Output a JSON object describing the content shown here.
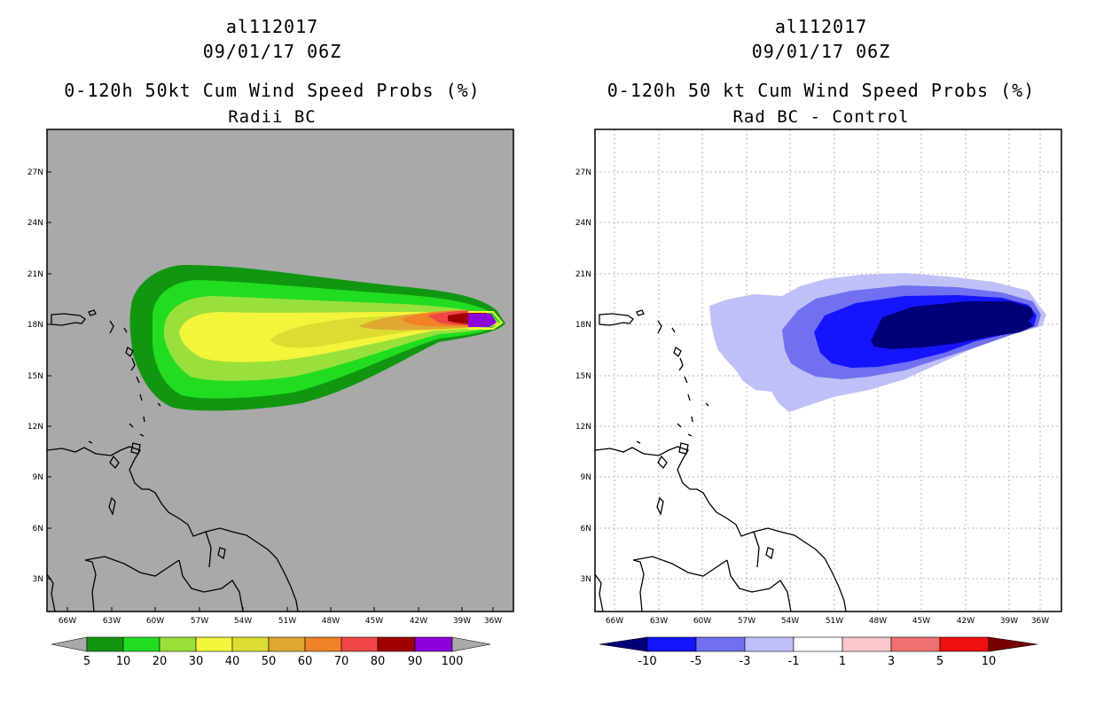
{
  "left_panel": {
    "storm_id": "al112017",
    "datetime": "09/01/17 06Z",
    "title": "0-120h 50kt Cum Wind Speed Probs (%)",
    "subtitle": "Radii BC",
    "lat_labels": [
      "27N",
      "24N",
      "21N",
      "18N",
      "15N",
      "12N",
      "9N",
      "6N",
      "3N"
    ],
    "lon_labels": [
      "66W",
      "63W",
      "60W",
      "57W",
      "54W",
      "51W",
      "48W",
      "45W",
      "42W",
      "39W",
      "36W"
    ],
    "colorbar_labels": [
      "5",
      "10",
      "20",
      "30",
      "40",
      "50",
      "60",
      "70",
      "80",
      "90",
      "100"
    ],
    "colors": {
      "background": "#a9a9a9",
      "bins": [
        "#129612",
        "#22dc22",
        "#9ae03c",
        "#f4f43c",
        "#dcdc32",
        "#e0a832",
        "#f08228",
        "#f04646",
        "#a00000",
        "#8c00dc"
      ]
    }
  },
  "right_panel": {
    "storm_id": "al112017",
    "datetime": "09/01/17 06Z",
    "title": "0-120h 50 kt Cum Wind Speed Probs (%)",
    "subtitle": "Rad BC - Control",
    "lat_labels": [
      "27N",
      "24N",
      "21N",
      "18N",
      "15N",
      "12N",
      "9N",
      "6N",
      "3N"
    ],
    "lon_labels": [
      "66W",
      "63W",
      "60W",
      "57W",
      "54W",
      "51W",
      "48W",
      "45W",
      "42W",
      "39W",
      "36W"
    ],
    "colorbar_labels": [
      "-10",
      "-5",
      "-3",
      "-1",
      "1",
      "3",
      "5",
      "10"
    ],
    "colors": {
      "background": "#ffffff",
      "bins": [
        "#000078",
        "#1414ff",
        "#7070f0",
        "#c0c0f8",
        "#ffffff",
        "#fac8c8",
        "#f07070",
        "#f01010",
        "#780000"
      ]
    }
  }
}
